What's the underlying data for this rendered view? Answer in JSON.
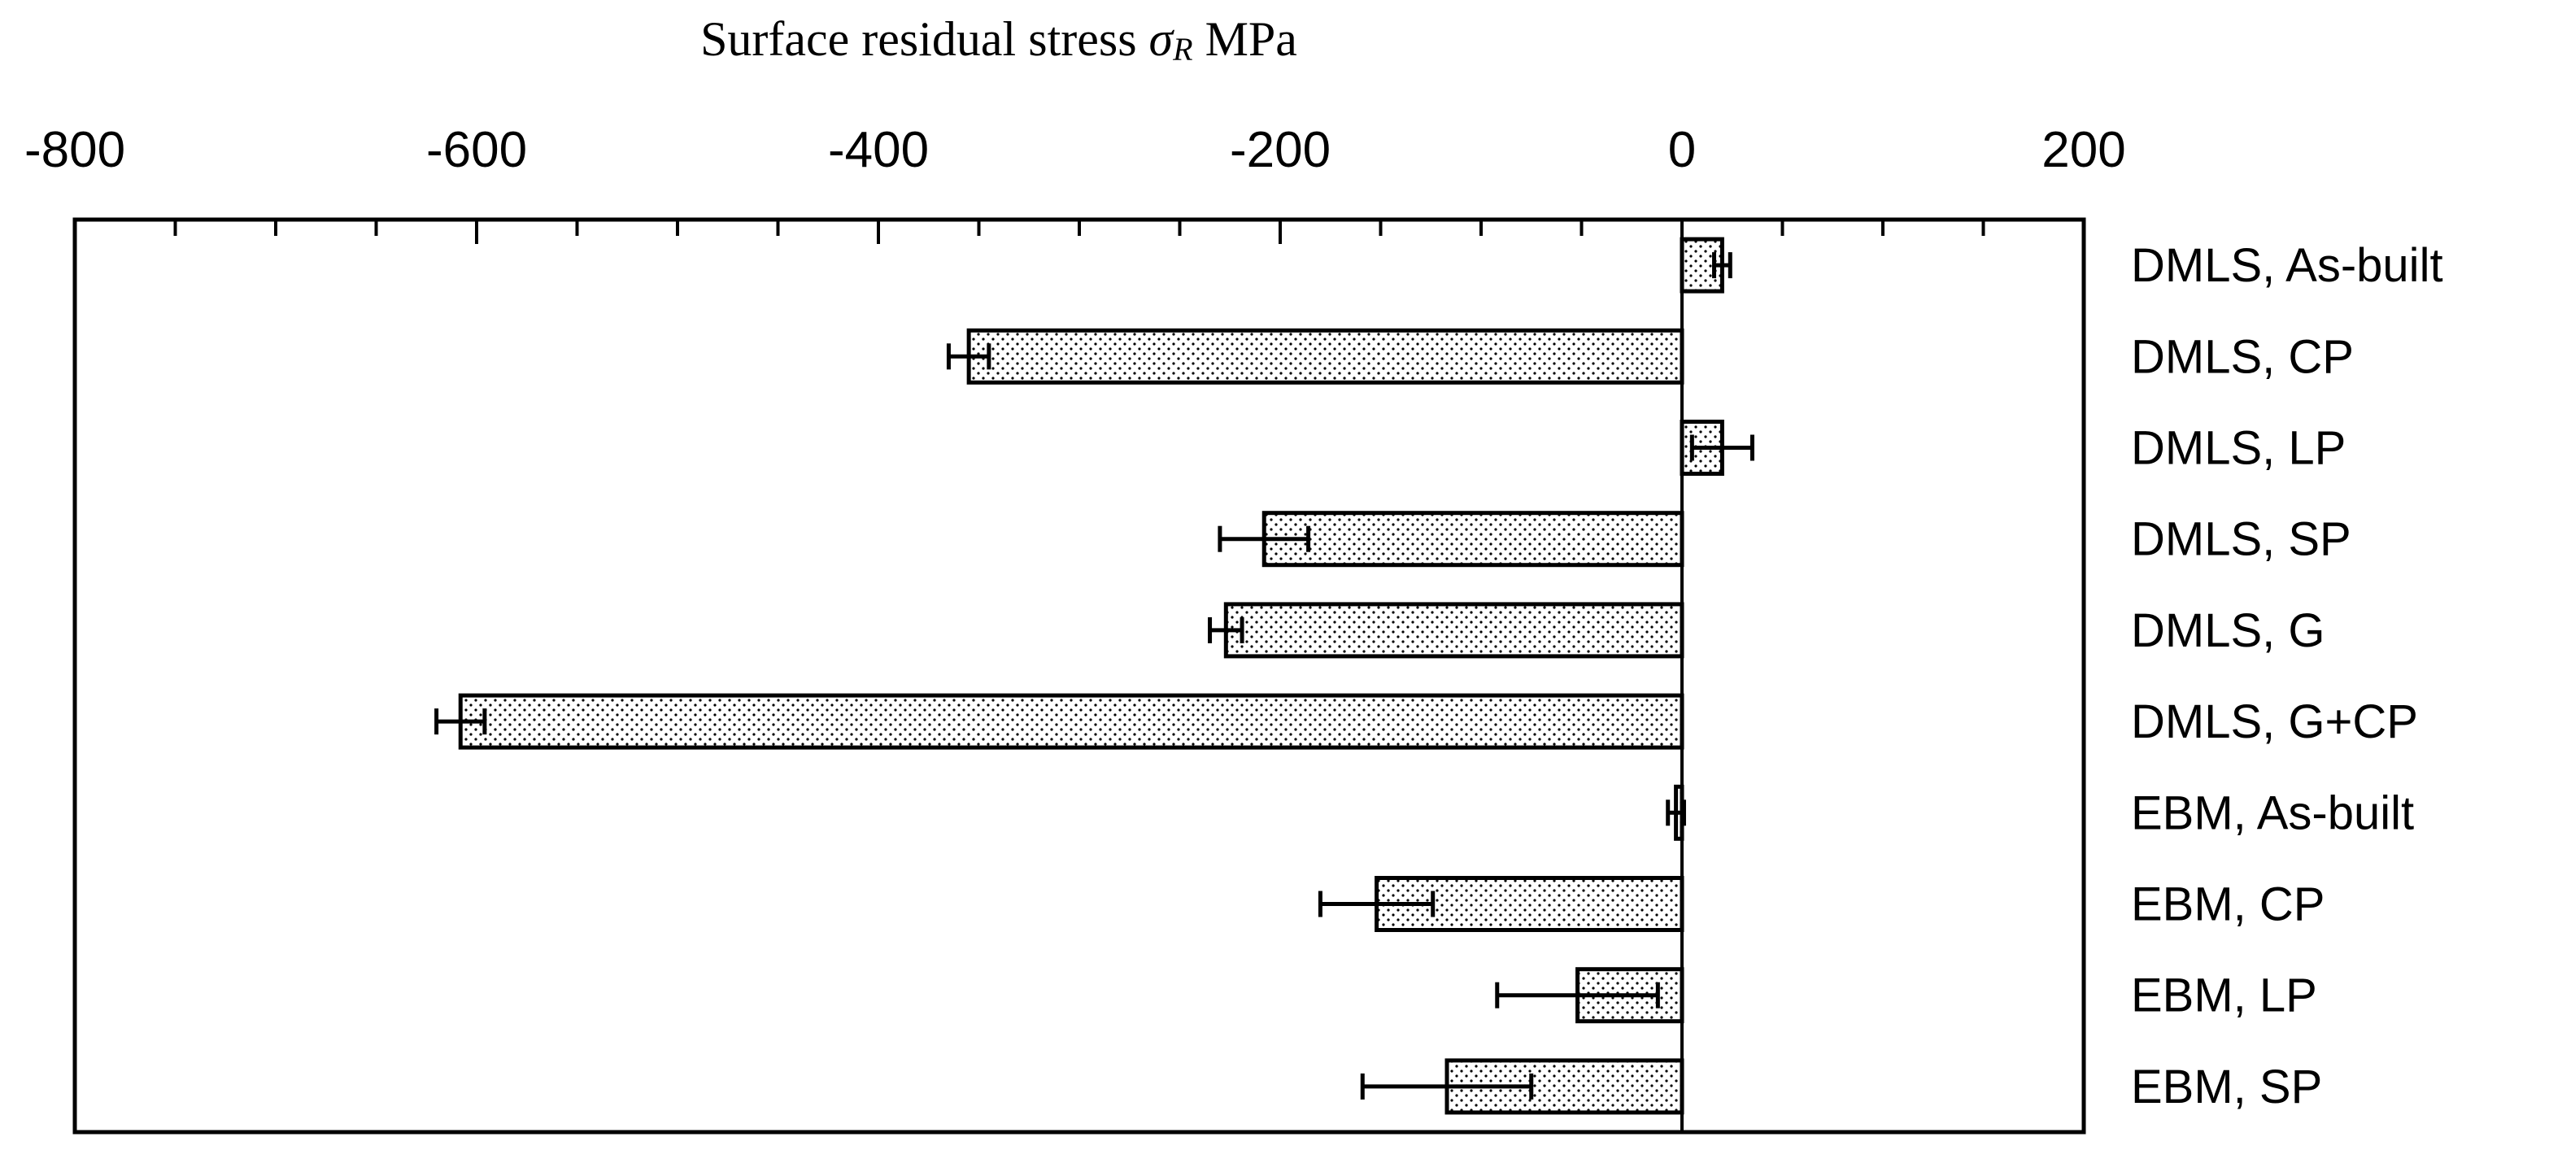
{
  "chart_data": {
    "type": "bar",
    "orientation": "horizontal",
    "title": "",
    "xlabel": {
      "prefix": "Surface residual stress ",
      "symbol": "σ",
      "subscript": "R",
      "unit": " MPa"
    },
    "xlim": [
      -800,
      200
    ],
    "x_ticks": [
      -800,
      -600,
      -400,
      -200,
      0,
      200
    ],
    "x_tick_labels": [
      "-800",
      "-600",
      "-400",
      "-200",
      "0",
      "200"
    ],
    "x_axis_position": "top",
    "category_axis_position": "right",
    "grid": false,
    "categories": [
      "DMLS, As-built",
      "DMLS, CP",
      "DMLS, LP",
      "DMLS, SP",
      "DMLS, G",
      "DMLS, G+CP",
      "EBM, As-built",
      "EBM, CP",
      "EBM, LP",
      "EBM, SP"
    ],
    "values": [
      20,
      -355,
      20,
      -208,
      -227,
      -608,
      -3,
      -152,
      -52,
      -117
    ],
    "errors": [
      4,
      10,
      15,
      22,
      8,
      12,
      4,
      28,
      40,
      42
    ],
    "colors": {
      "bar_fill": "#ffffff",
      "bar_pattern_dot": "#000000",
      "bar_stroke": "#000000",
      "axis": "#000000"
    }
  }
}
